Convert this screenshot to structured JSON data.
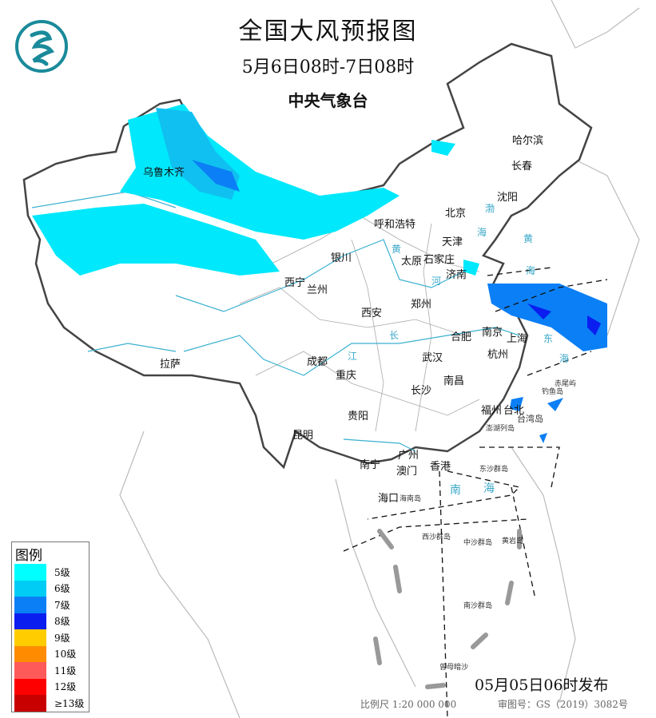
{
  "header": {
    "title": "全国大风预报图",
    "period": "5月6日08时-7日08时",
    "issuer": "中央气象台"
  },
  "logo": {
    "name": "cma-logo-icon"
  },
  "cities": [
    {
      "name": "哈尔滨"
    },
    {
      "name": "长春"
    },
    {
      "name": "沈阳"
    },
    {
      "name": "北京"
    },
    {
      "name": "天津"
    },
    {
      "name": "呼和浩特"
    },
    {
      "name": "乌鲁木齐"
    },
    {
      "name": "石家庄"
    },
    {
      "name": "太原"
    },
    {
      "name": "济南"
    },
    {
      "name": "银川"
    },
    {
      "name": "西宁"
    },
    {
      "name": "兰州"
    },
    {
      "name": "郑州"
    },
    {
      "name": "西安"
    },
    {
      "name": "合肥"
    },
    {
      "name": "南京"
    },
    {
      "name": "上海"
    },
    {
      "name": "杭州"
    },
    {
      "name": "武汉"
    },
    {
      "name": "成都"
    },
    {
      "name": "重庆"
    },
    {
      "name": "长沙"
    },
    {
      "name": "南昌"
    },
    {
      "name": "拉萨"
    },
    {
      "name": "贵阳"
    },
    {
      "name": "昆明"
    },
    {
      "name": "福州"
    },
    {
      "name": "台北"
    },
    {
      "name": "广州"
    },
    {
      "name": "南宁"
    },
    {
      "name": "澳门"
    },
    {
      "name": "香港"
    },
    {
      "name": "海口"
    }
  ],
  "islands": [
    {
      "name": "赤尾屿"
    },
    {
      "name": "钓鱼岛"
    },
    {
      "name": "台湾岛"
    },
    {
      "name": "澎湖列岛"
    },
    {
      "name": "东沙群岛"
    },
    {
      "name": "海南岛"
    },
    {
      "name": "西沙群岛"
    },
    {
      "name": "中沙群岛"
    },
    {
      "name": "黄岩岛"
    },
    {
      "name": "南沙群岛"
    },
    {
      "name": "曾母暗沙"
    }
  ],
  "water": [
    {
      "name": "南"
    },
    {
      "name": "海"
    },
    {
      "name": "渤"
    },
    {
      "name": "海"
    },
    {
      "name": "黄"
    },
    {
      "name": "海"
    },
    {
      "name": "东"
    },
    {
      "name": "海"
    },
    {
      "name": "黄"
    },
    {
      "name": "河"
    },
    {
      "name": "长"
    },
    {
      "name": "江"
    }
  ],
  "legend": {
    "title": "图例",
    "items": [
      {
        "label": "5级",
        "color": "#00ffff"
      },
      {
        "label": "6级",
        "color": "#00ccf5"
      },
      {
        "label": "7级",
        "color": "#0b7ff5"
      },
      {
        "label": "8级",
        "color": "#0a1ef0"
      },
      {
        "label": "9级",
        "color": "#ffcc00"
      },
      {
        "label": "10级",
        "color": "#ff8c00"
      },
      {
        "label": "11级",
        "color": "#ff5a5a"
      },
      {
        "label": "12级",
        "color": "#ff0000"
      },
      {
        "label": "≥13级",
        "color": "#c80000"
      }
    ]
  },
  "footer": {
    "issued": "05月05日06时发布",
    "scale": "比例尺 1:20 000 000",
    "review": "审图号：GS（2019）3082号"
  }
}
